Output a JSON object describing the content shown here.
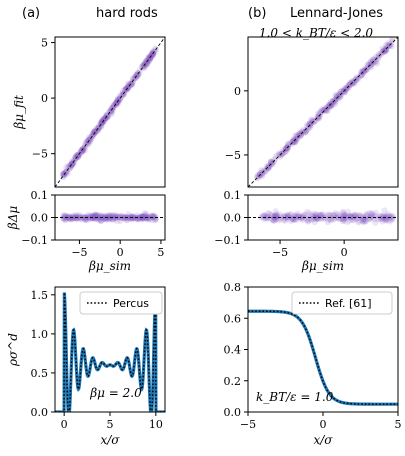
{
  "panel_labels": {
    "a_letter": "(a)",
    "a_title": "hard rods",
    "b_letter": "(b)",
    "b_title": "Lennard-Jones",
    "b_subtitle": "1.0 < k_BT/ε < 2.0"
  },
  "chart_data": [
    {
      "id": "a-parity",
      "type": "scatter",
      "ylabel": "βμ_fit",
      "xlim": [
        -8,
        5.5
      ],
      "ylim": [
        -8,
        5.5
      ],
      "yticks": [
        -5,
        0,
        5
      ],
      "series": [
        {
          "x_range": [
            -7,
            4.5
          ],
          "color": "#8a5cc4",
          "description_free": true
        }
      ],
      "reference_line": {
        "style": "dashed",
        "slope": 1
      }
    },
    {
      "id": "a-residual",
      "type": "scatter",
      "ylabel": "βΔμ",
      "xlabel": "βμ_sim",
      "xlim": [
        -8,
        5.5
      ],
      "ylim": [
        -0.1,
        0.1
      ],
      "xticks": [
        -5,
        0,
        5
      ],
      "yticks": [
        -0.1,
        0.0,
        0.1
      ],
      "series": [
        {
          "x_range": [
            -7,
            4.5
          ],
          "spread": 0.006,
          "color": "#8a5cc4"
        }
      ],
      "reference_line": {
        "style": "dashed",
        "y": 0
      }
    },
    {
      "id": "b-parity",
      "type": "scatter",
      "xlim": [
        -7.5,
        4.2
      ],
      "ylim": [
        -7.5,
        4.2
      ],
      "yticks": [
        -5,
        0
      ],
      "series": [
        {
          "x_range": [
            -6.8,
            3.8
          ],
          "color": "#8a5cc4"
        }
      ],
      "reference_line": {
        "style": "dashed",
        "slope": 1
      }
    },
    {
      "id": "b-residual",
      "type": "scatter",
      "xlabel": "βμ_sim",
      "xlim": [
        -7.5,
        4.2
      ],
      "ylim": [
        -0.1,
        0.1
      ],
      "xticks": [
        -5,
        0
      ],
      "yticks": [
        -0.1,
        0.0,
        0.1
      ],
      "series": [
        {
          "x_range": [
            -6.5,
            3.8
          ],
          "spread": 0.01,
          "color": "#8a5cc4"
        }
      ],
      "reference_line": {
        "style": "dashed",
        "y": 0
      }
    },
    {
      "id": "a-profile",
      "type": "line",
      "xlabel": "x/σ",
      "ylabel": "ρσ^d",
      "xlim": [
        -1,
        11
      ],
      "ylim": [
        0,
        1.6
      ],
      "xticks": [
        0,
        5,
        10
      ],
      "yticks": [
        0.0,
        0.5,
        1.0,
        1.5
      ],
      "legend": {
        "label": "Percus",
        "placement": "top-center"
      },
      "annotation": "βμ = 2.0",
      "series": [
        {
          "name": "",
          "color": "#1f77b4",
          "style": "solid"
        },
        {
          "name": "Percus",
          "color": "#000000",
          "style": "dotted"
        }
      ],
      "wall_positions": [
        0,
        10
      ],
      "bulk_density": 0.6,
      "contact_density": 1.55
    },
    {
      "id": "b-profile",
      "type": "line",
      "xlabel": "x/σ",
      "xlim": [
        -5,
        5
      ],
      "ylim": [
        0,
        0.8
      ],
      "xticks": [
        -5,
        0,
        5
      ],
      "yticks": [
        0.0,
        0.2,
        0.4,
        0.6,
        0.8
      ],
      "legend": {
        "label": "Ref. [61]",
        "placement": "top-right"
      },
      "annotation": "k_BT/ε = 1.0",
      "series": [
        {
          "name": "",
          "color": "#1f77b4",
          "style": "solid"
        },
        {
          "name": "Ref. [61]",
          "color": "#000000",
          "style": "dotted"
        }
      ],
      "profile": {
        "liquid": 0.645,
        "vapor": 0.05,
        "interface_x": -0.5,
        "width": 0.9
      }
    }
  ]
}
